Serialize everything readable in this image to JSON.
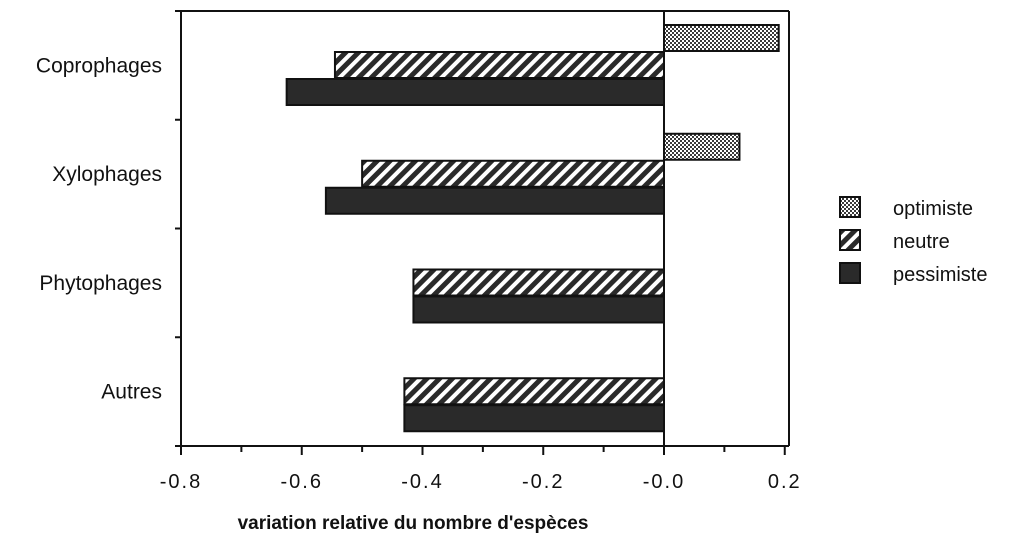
{
  "chart_data": {
    "type": "bar",
    "orientation": "horizontal",
    "categories": [
      "Coprophages",
      "Xylophages",
      "Phytophages",
      "Autres"
    ],
    "series": [
      {
        "name": "optimiste",
        "values": [
          0.19,
          0.125,
          null,
          null
        ],
        "fill": "crosshatch"
      },
      {
        "name": "neutre",
        "values": [
          -0.545,
          -0.5,
          -0.415,
          -0.43
        ],
        "fill": "diagonal"
      },
      {
        "name": "pessimiste",
        "values": [
          -0.625,
          -0.56,
          -0.415,
          -0.43
        ],
        "fill": "solid"
      }
    ],
    "xlabel": "variation relative du nombre d'espèces",
    "xlim": [
      -0.8,
      0.2
    ],
    "xticks": [
      -0.8,
      -0.6,
      -0.4,
      -0.2,
      0.0,
      0.2
    ],
    "xtick_labels": [
      "-0.8",
      "-0.6",
      "-0.4",
      "-0.2",
      "-0.0",
      "0.2"
    ],
    "grid": false,
    "legend_position": "right",
    "colors": {
      "bar_dark": "#2a2a2a",
      "border": "#111111",
      "hatch_light": "#ffffff"
    }
  }
}
